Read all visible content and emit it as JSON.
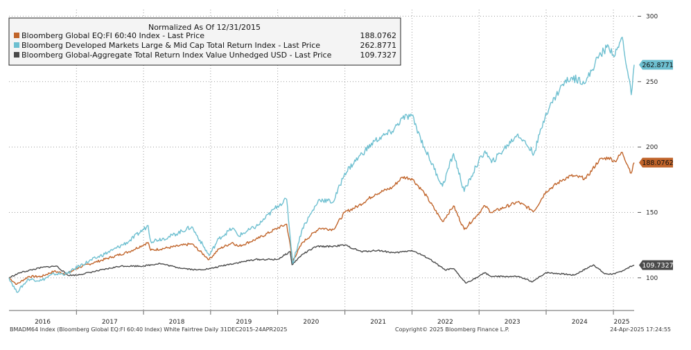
{
  "chart_data": {
    "type": "line",
    "legend": {
      "title": "Normalized As Of 12/31/2015",
      "placement": "top-left"
    },
    "x_range": [
      "2015-12-31",
      "2025-04-24"
    ],
    "ylim": [
      75,
      305
    ],
    "y_ticks": [
      {
        "value": 100,
        "label": "100"
      },
      {
        "value": 150,
        "label": "150"
      },
      {
        "value": 200,
        "label": "200"
      },
      {
        "value": 250,
        "label": "250"
      },
      {
        "value": 300,
        "label": "300"
      }
    ],
    "x_ticks": [
      {
        "date": "2016-07-01",
        "label": "2016"
      },
      {
        "date": "2017-07-01",
        "label": "2017"
      },
      {
        "date": "2018-07-01",
        "label": "2018"
      },
      {
        "date": "2019-07-01",
        "label": "2019"
      },
      {
        "date": "2020-07-01",
        "label": "2020"
      },
      {
        "date": "2021-07-01",
        "label": "2021"
      },
      {
        "date": "2022-07-01",
        "label": "2022"
      },
      {
        "date": "2023-07-01",
        "label": "2023"
      },
      {
        "date": "2024-07-01",
        "label": "2024"
      },
      {
        "date": "2025-02-15",
        "label": "2025"
      }
    ],
    "year_boundaries": [
      "2017-01-01",
      "2018-01-01",
      "2019-01-01",
      "2020-01-01",
      "2021-01-01",
      "2022-01-01",
      "2023-01-01",
      "2024-01-01",
      "2025-01-01"
    ],
    "grid": true,
    "series": [
      {
        "name": "Bloomberg Global EQ:FI 60:40 Index - Last Price",
        "last_value": "188.0762",
        "color": "#c0642a",
        "points": [
          [
            "2015-12-31",
            100
          ],
          [
            "2016-02-11",
            95
          ],
          [
            "2016-04-15",
            101
          ],
          [
            "2016-06-24",
            101
          ],
          [
            "2016-09-01",
            105
          ],
          [
            "2016-11-10",
            103
          ],
          [
            "2017-01-15",
            108
          ],
          [
            "2017-04-15",
            112
          ],
          [
            "2017-07-15",
            116
          ],
          [
            "2017-10-15",
            120
          ],
          [
            "2018-01-26",
            127
          ],
          [
            "2018-02-09",
            121
          ],
          [
            "2018-05-15",
            123
          ],
          [
            "2018-09-20",
            126
          ],
          [
            "2018-12-24",
            114
          ],
          [
            "2019-02-15",
            122
          ],
          [
            "2019-05-01",
            127
          ],
          [
            "2019-06-01",
            124
          ],
          [
            "2019-09-15",
            130
          ],
          [
            "2019-12-31",
            138
          ],
          [
            "2020-02-19",
            141
          ],
          [
            "2020-03-23",
            113
          ],
          [
            "2020-05-15",
            127
          ],
          [
            "2020-08-15",
            138
          ],
          [
            "2020-10-30",
            137
          ],
          [
            "2020-12-31",
            150
          ],
          [
            "2021-03-15",
            155
          ],
          [
            "2021-06-15",
            164
          ],
          [
            "2021-09-15",
            169
          ],
          [
            "2021-11-10",
            177
          ],
          [
            "2021-12-31",
            176
          ],
          [
            "2022-03-08",
            165
          ],
          [
            "2022-06-16",
            143
          ],
          [
            "2022-08-15",
            155
          ],
          [
            "2022-10-12",
            137
          ],
          [
            "2022-12-15",
            147
          ],
          [
            "2023-02-02",
            155
          ],
          [
            "2023-03-10",
            150
          ],
          [
            "2023-07-31",
            158
          ],
          [
            "2023-10-27",
            151
          ],
          [
            "2023-12-31",
            166
          ],
          [
            "2024-03-31",
            175
          ],
          [
            "2024-05-15",
            178
          ],
          [
            "2024-08-05",
            176
          ],
          [
            "2024-10-15",
            190
          ],
          [
            "2024-12-06",
            192
          ],
          [
            "2025-01-10",
            189
          ],
          [
            "2025-02-18",
            196
          ],
          [
            "2025-04-08",
            180
          ],
          [
            "2025-04-24",
            188.0762
          ]
        ]
      },
      {
        "name": "Bloomberg Developed Markets Large & Mid Cap Total Return Index - Last Price",
        "last_value": "262.8771",
        "color": "#6dbfd0",
        "points": [
          [
            "2015-12-31",
            100
          ],
          [
            "2016-02-11",
            89
          ],
          [
            "2016-04-15",
            99
          ],
          [
            "2016-06-24",
            98
          ],
          [
            "2016-09-01",
            103
          ],
          [
            "2016-11-10",
            103
          ],
          [
            "2017-01-15",
            109
          ],
          [
            "2017-04-15",
            115
          ],
          [
            "2017-07-15",
            121
          ],
          [
            "2017-10-15",
            128
          ],
          [
            "2018-01-26",
            140
          ],
          [
            "2018-02-09",
            128
          ],
          [
            "2018-05-15",
            131
          ],
          [
            "2018-09-20",
            139
          ],
          [
            "2018-12-24",
            117
          ],
          [
            "2019-02-15",
            130
          ],
          [
            "2019-05-01",
            138
          ],
          [
            "2019-06-01",
            132
          ],
          [
            "2019-09-15",
            140
          ],
          [
            "2019-12-31",
            155
          ],
          [
            "2020-02-19",
            160
          ],
          [
            "2020-03-23",
            111
          ],
          [
            "2020-05-15",
            138
          ],
          [
            "2020-08-15",
            160
          ],
          [
            "2020-10-30",
            158
          ],
          [
            "2020-12-31",
            180
          ],
          [
            "2021-03-15",
            192
          ],
          [
            "2021-06-15",
            205
          ],
          [
            "2021-09-15",
            212
          ],
          [
            "2021-11-10",
            222
          ],
          [
            "2021-12-31",
            224
          ],
          [
            "2022-03-08",
            200
          ],
          [
            "2022-06-16",
            170
          ],
          [
            "2022-08-15",
            195
          ],
          [
            "2022-10-12",
            166
          ],
          [
            "2022-12-15",
            185
          ],
          [
            "2023-02-02",
            197
          ],
          [
            "2023-03-10",
            188
          ],
          [
            "2023-07-31",
            210
          ],
          [
            "2023-10-27",
            195
          ],
          [
            "2023-12-31",
            226
          ],
          [
            "2024-03-31",
            248
          ],
          [
            "2024-05-15",
            253
          ],
          [
            "2024-08-05",
            250
          ],
          [
            "2024-10-15",
            270
          ],
          [
            "2024-12-06",
            277
          ],
          [
            "2025-01-10",
            270
          ],
          [
            "2025-02-18",
            284
          ],
          [
            "2025-04-08",
            240
          ],
          [
            "2025-04-24",
            262.8771
          ]
        ]
      },
      {
        "name": "Bloomberg Global-Aggregate Total Return Index Value Unhedged USD - Last Price",
        "last_value": "109.7327",
        "color": "#4a4a4a",
        "points": [
          [
            "2015-12-31",
            100
          ],
          [
            "2016-03-01",
            104
          ],
          [
            "2016-06-30",
            108
          ],
          [
            "2016-09-15",
            109
          ],
          [
            "2016-11-15",
            102
          ],
          [
            "2016-12-31",
            102
          ],
          [
            "2017-04-15",
            105
          ],
          [
            "2017-08-31",
            109
          ],
          [
            "2017-12-31",
            109
          ],
          [
            "2018-03-31",
            111
          ],
          [
            "2018-06-30",
            108
          ],
          [
            "2018-10-15",
            106
          ],
          [
            "2018-12-31",
            107
          ],
          [
            "2019-03-31",
            110
          ],
          [
            "2019-08-31",
            114
          ],
          [
            "2019-12-31",
            114
          ],
          [
            "2020-03-09",
            120
          ],
          [
            "2020-03-19",
            110
          ],
          [
            "2020-05-15",
            118
          ],
          [
            "2020-07-31",
            124
          ],
          [
            "2020-10-15",
            124
          ],
          [
            "2020-12-31",
            125
          ],
          [
            "2021-03-31",
            120
          ],
          [
            "2021-06-30",
            121
          ],
          [
            "2021-09-30",
            119
          ],
          [
            "2021-12-31",
            121
          ],
          [
            "2022-03-31",
            115
          ],
          [
            "2022-06-30",
            106
          ],
          [
            "2022-08-15",
            107
          ],
          [
            "2022-10-20",
            96
          ],
          [
            "2022-12-31",
            101
          ],
          [
            "2023-02-02",
            104
          ],
          [
            "2023-03-08",
            101
          ],
          [
            "2023-07-31",
            101
          ],
          [
            "2023-10-20",
            97
          ],
          [
            "2023-12-31",
            104
          ],
          [
            "2024-03-31",
            103
          ],
          [
            "2024-05-31",
            102
          ],
          [
            "2024-09-15",
            110
          ],
          [
            "2024-11-15",
            103
          ],
          [
            "2025-01-10",
            103
          ],
          [
            "2025-03-15",
            107
          ],
          [
            "2025-04-24",
            109.7327
          ]
        ]
      }
    ]
  },
  "footer": {
    "left": "BMADM64 Index (Bloomberg Global EQ:FI 60:40 Index) White Fairtree  Daily 31DEC2015-24APR2025",
    "center": "Copyright© 2025 Bloomberg Finance L.P.",
    "right": "24-Apr-2025 17:24:55"
  }
}
